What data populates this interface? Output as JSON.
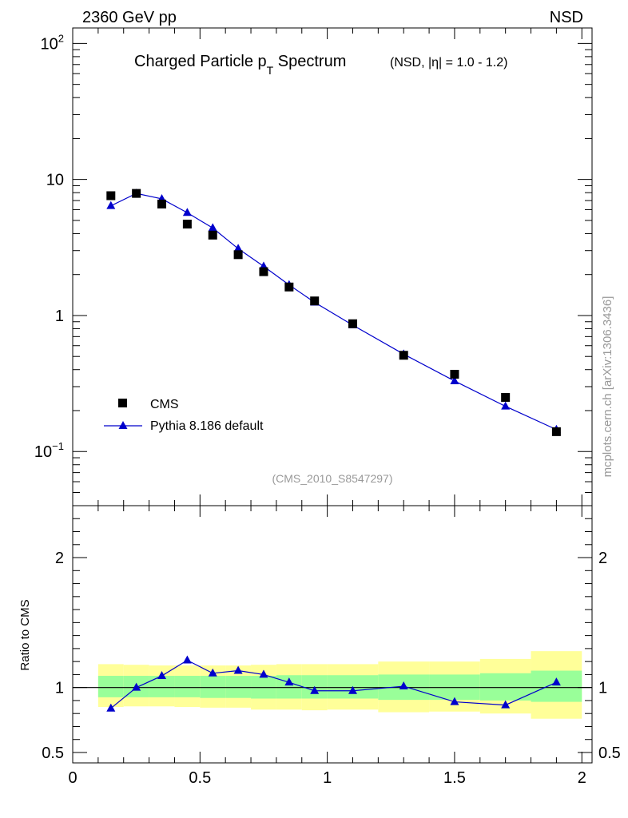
{
  "header": {
    "left": "2360 GeV pp",
    "right": "NSD"
  },
  "title": {
    "main": "Charged Particle p",
    "main_sub": "T",
    "main_tail": " Spectrum",
    "qualifier": "(NSD, |η| = 1.0 - 1.2)"
  },
  "analysis_label": "(CMS_2010_S8547297)",
  "side_label": "mcplots.cern.ch [arXiv:1306.3436]",
  "ratio_ylabel": "Ratio to CMS",
  "legend": {
    "data_label": "CMS",
    "mc_label": "Pythia 8.186 default"
  },
  "chart_data": [
    {
      "type": "scatter",
      "panel": "main",
      "yscale": "log",
      "ylim": [
        0.04,
        130
      ],
      "xlim": [
        0,
        2.04
      ],
      "y_ticks": [
        {
          "value": 0.1,
          "base": "10",
          "exp": "−1"
        },
        {
          "value": 1,
          "base": "1",
          "exp": ""
        },
        {
          "value": 10,
          "base": "10",
          "exp": ""
        },
        {
          "value": 100,
          "base": "10",
          "exp": "2"
        }
      ],
      "x": [
        0.15,
        0.25,
        0.35,
        0.45,
        0.55,
        0.65,
        0.75,
        0.85,
        0.95,
        1.1,
        1.3,
        1.5,
        1.7,
        1.9
      ],
      "series": [
        {
          "name": "CMS",
          "marker": "square",
          "color": "#000000",
          "values": [
            7.6,
            7.9,
            6.6,
            4.7,
            3.9,
            2.8,
            2.1,
            1.62,
            1.28,
            0.87,
            0.51,
            0.37,
            0.25,
            0.14
          ]
        },
        {
          "name": "Pythia 8.186 default",
          "marker": "triangle",
          "color": "#0000cc",
          "values": [
            6.4,
            7.9,
            7.2,
            5.7,
            4.4,
            3.1,
            2.3,
            1.68,
            1.25,
            0.85,
            0.52,
            0.33,
            0.215,
            0.145
          ]
        }
      ]
    },
    {
      "type": "line",
      "panel": "ratio",
      "ylabel": "Ratio to CMS",
      "ylim": [
        0.42,
        2.4
      ],
      "xlim": [
        0,
        2.04
      ],
      "y_ticks": [
        0.5,
        1,
        2
      ],
      "x_ticks": [
        0,
        0.5,
        1,
        1.5,
        2
      ],
      "x_tick_labels": [
        "0",
        "0.5",
        "1",
        "1.5",
        "2"
      ],
      "bands": {
        "edges": [
          0.1,
          0.2,
          0.3,
          0.4,
          0.5,
          0.6,
          0.7,
          0.8,
          0.9,
          1.0,
          1.2,
          1.4,
          1.6,
          1.8,
          2.0
        ],
        "yellow_lo": [
          0.85,
          0.855,
          0.855,
          0.85,
          0.845,
          0.845,
          0.83,
          0.83,
          0.825,
          0.83,
          0.81,
          0.815,
          0.8,
          0.76
        ],
        "yellow_hi": [
          1.18,
          1.175,
          1.17,
          1.17,
          1.17,
          1.17,
          1.175,
          1.18,
          1.18,
          1.18,
          1.2,
          1.2,
          1.22,
          1.28
        ],
        "green_lo": [
          0.925,
          0.925,
          0.925,
          0.925,
          0.92,
          0.92,
          0.915,
          0.915,
          0.915,
          0.915,
          0.905,
          0.905,
          0.9,
          0.89
        ],
        "green_hi": [
          1.09,
          1.09,
          1.09,
          1.09,
          1.09,
          1.09,
          1.09,
          1.095,
          1.095,
          1.095,
          1.1,
          1.1,
          1.11,
          1.13
        ],
        "yellow_color": "#ffff99",
        "green_color": "#99ff99"
      },
      "x": [
        0.15,
        0.25,
        0.35,
        0.45,
        0.55,
        0.65,
        0.75,
        0.85,
        0.95,
        1.1,
        1.3,
        1.5,
        1.7,
        1.9
      ],
      "series": [
        {
          "name": "Pythia 8.186 default",
          "color": "#0000cc",
          "values": [
            0.84,
            1.0,
            1.09,
            1.21,
            1.11,
            1.13,
            1.1,
            1.04,
            0.975,
            0.975,
            1.01,
            0.89,
            0.865,
            1.04
          ]
        }
      ]
    }
  ]
}
